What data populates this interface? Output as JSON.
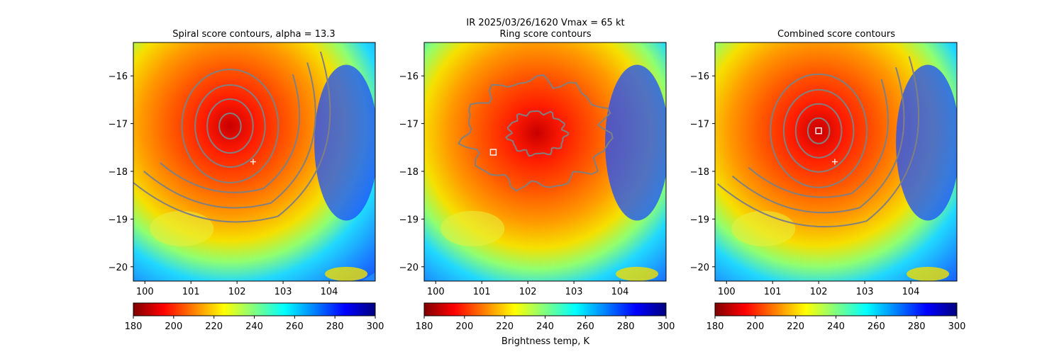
{
  "suptitle_line1": "IR  2025/03/26/1620    Vmax = 65 kt",
  "colorbar_label": "Brightness temp, K",
  "colormap": [
    "#800000",
    "#ff0000",
    "#ff8000",
    "#ffff00",
    "#80ff80",
    "#00ffff",
    "#0080ff",
    "#0000ff",
    "#000080"
  ],
  "chart_data": [
    {
      "type": "heatmap",
      "title": "Spiral score contours, alpha = 13.3",
      "xlim": [
        99.75,
        105.0
      ],
      "ylim": [
        -20.3,
        -15.3
      ],
      "xticks": [
        100,
        101,
        102,
        103,
        104
      ],
      "yticks": [
        -16,
        -17,
        -18,
        -19,
        -20
      ],
      "xtick_labels": [
        "100",
        "101",
        "102",
        "103",
        "104"
      ],
      "ytick_labels": [
        "−16",
        "−17",
        "−18",
        "−19",
        "−20"
      ],
      "colorbar": {
        "min": 180,
        "max": 300,
        "ticks": [
          180,
          200,
          220,
          240,
          260,
          280,
          300
        ],
        "tick_labels": [
          "180",
          "200",
          "220",
          "240",
          "260",
          "280",
          "300"
        ],
        "label": ""
      },
      "storm_center": [
        101.85,
        -17.05
      ],
      "contour_type": "spiral",
      "markers": [
        {
          "type": "plus",
          "x": 102.35,
          "y": -17.8
        }
      ]
    },
    {
      "type": "heatmap",
      "title": "Ring score contours",
      "xlim": [
        99.75,
        105.0
      ],
      "ylim": [
        -20.3,
        -15.3
      ],
      "xticks": [
        100,
        101,
        102,
        103,
        104
      ],
      "yticks": [
        -16,
        -17,
        -18,
        -19,
        -20
      ],
      "xtick_labels": [
        "100",
        "101",
        "102",
        "103",
        "104"
      ],
      "ytick_labels": [
        "−16",
        "−17",
        "−18",
        "−19",
        "−20"
      ],
      "colorbar": {
        "min": 180,
        "max": 300,
        "ticks": [
          180,
          200,
          220,
          240,
          260,
          280,
          300
        ],
        "tick_labels": [
          "180",
          "200",
          "220",
          "240",
          "260",
          "280",
          "300"
        ],
        "label": "Brightness temp, K"
      },
      "storm_center": [
        102.2,
        -17.2
      ],
      "contour_type": "ring",
      "markers": [
        {
          "type": "square",
          "x": 101.25,
          "y": -17.6
        }
      ]
    },
    {
      "type": "heatmap",
      "title": "Combined score contours",
      "xlim": [
        99.75,
        105.0
      ],
      "ylim": [
        -20.3,
        -15.3
      ],
      "xticks": [
        100,
        101,
        102,
        103,
        104
      ],
      "yticks": [
        -16,
        -17,
        -18,
        -19,
        -20
      ],
      "xtick_labels": [
        "100",
        "101",
        "102",
        "103",
        "104"
      ],
      "ytick_labels": [
        "−16",
        "−17",
        "−18",
        "−19",
        "−20"
      ],
      "colorbar": {
        "min": 180,
        "max": 300,
        "ticks": [
          180,
          200,
          220,
          240,
          260,
          280,
          300
        ],
        "tick_labels": [
          "180",
          "200",
          "220",
          "240",
          "260",
          "280",
          "300"
        ],
        "label": ""
      },
      "storm_center": [
        102.0,
        -17.15
      ],
      "contour_type": "spiral",
      "markers": [
        {
          "type": "plus",
          "x": 102.35,
          "y": -17.8
        },
        {
          "type": "square",
          "x": 102.0,
          "y": -17.15
        }
      ]
    }
  ]
}
